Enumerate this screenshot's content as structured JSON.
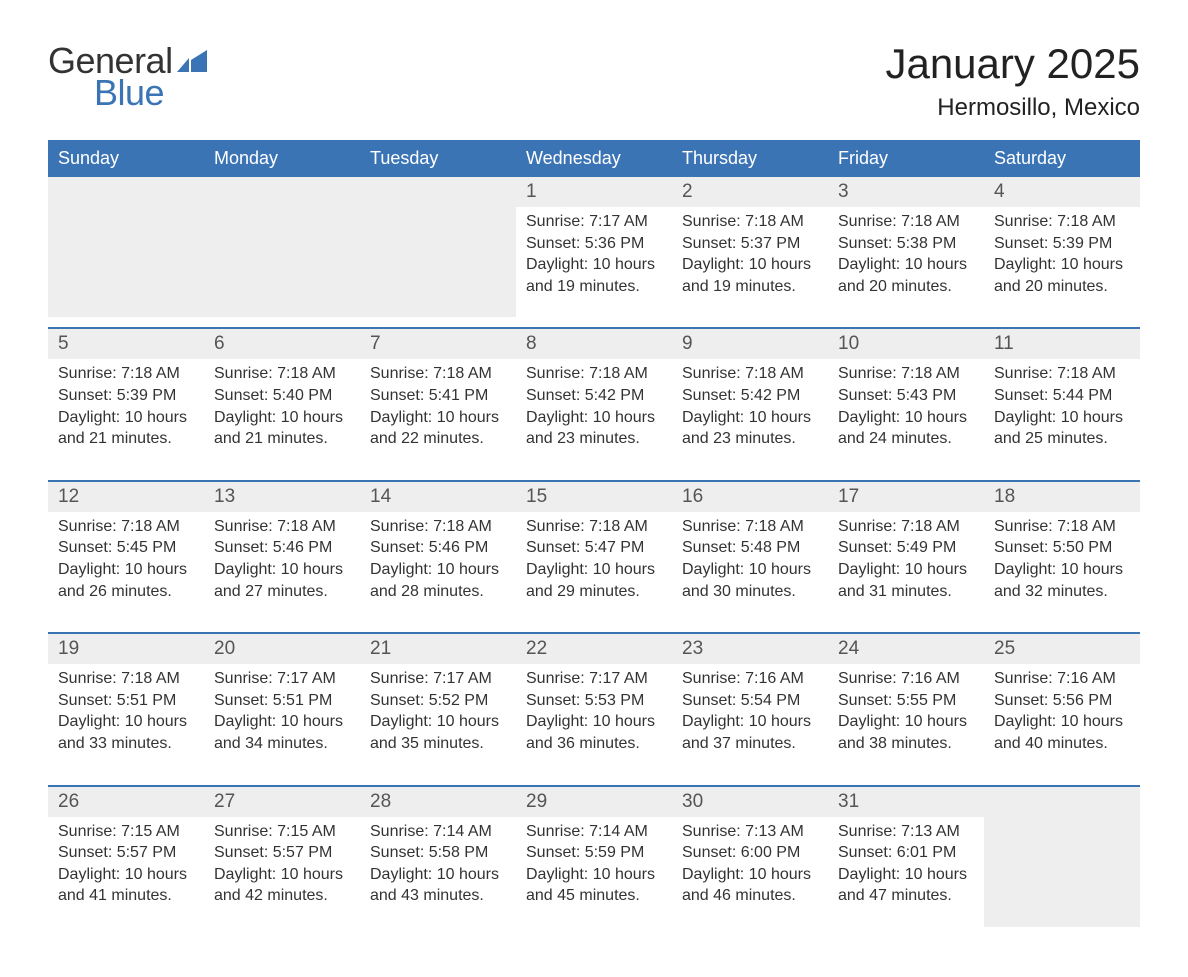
{
  "logo": {
    "word1": "General",
    "word2": "Blue",
    "mark_color": "#3b74b5"
  },
  "title": "January 2025",
  "location": "Hermosillo, Mexico",
  "colors": {
    "header_bg": "#3b74b5",
    "header_fg": "#ffffff",
    "daynum_bg": "#eeeeee",
    "row_border": "#3b74b5",
    "text": "#333333"
  },
  "weekday_labels": [
    "Sunday",
    "Monday",
    "Tuesday",
    "Wednesday",
    "Thursday",
    "Friday",
    "Saturday"
  ],
  "labels": {
    "sunrise": "Sunrise:",
    "sunset": "Sunset:",
    "daylight": "Daylight:"
  },
  "weeks": [
    [
      null,
      null,
      null,
      {
        "n": "1",
        "sunrise": "7:17 AM",
        "sunset": "5:36 PM",
        "daylight": "10 hours and 19 minutes."
      },
      {
        "n": "2",
        "sunrise": "7:18 AM",
        "sunset": "5:37 PM",
        "daylight": "10 hours and 19 minutes."
      },
      {
        "n": "3",
        "sunrise": "7:18 AM",
        "sunset": "5:38 PM",
        "daylight": "10 hours and 20 minutes."
      },
      {
        "n": "4",
        "sunrise": "7:18 AM",
        "sunset": "5:39 PM",
        "daylight": "10 hours and 20 minutes."
      }
    ],
    [
      {
        "n": "5",
        "sunrise": "7:18 AM",
        "sunset": "5:39 PM",
        "daylight": "10 hours and 21 minutes."
      },
      {
        "n": "6",
        "sunrise": "7:18 AM",
        "sunset": "5:40 PM",
        "daylight": "10 hours and 21 minutes."
      },
      {
        "n": "7",
        "sunrise": "7:18 AM",
        "sunset": "5:41 PM",
        "daylight": "10 hours and 22 minutes."
      },
      {
        "n": "8",
        "sunrise": "7:18 AM",
        "sunset": "5:42 PM",
        "daylight": "10 hours and 23 minutes."
      },
      {
        "n": "9",
        "sunrise": "7:18 AM",
        "sunset": "5:42 PM",
        "daylight": "10 hours and 23 minutes."
      },
      {
        "n": "10",
        "sunrise": "7:18 AM",
        "sunset": "5:43 PM",
        "daylight": "10 hours and 24 minutes."
      },
      {
        "n": "11",
        "sunrise": "7:18 AM",
        "sunset": "5:44 PM",
        "daylight": "10 hours and 25 minutes."
      }
    ],
    [
      {
        "n": "12",
        "sunrise": "7:18 AM",
        "sunset": "5:45 PM",
        "daylight": "10 hours and 26 minutes."
      },
      {
        "n": "13",
        "sunrise": "7:18 AM",
        "sunset": "5:46 PM",
        "daylight": "10 hours and 27 minutes."
      },
      {
        "n": "14",
        "sunrise": "7:18 AM",
        "sunset": "5:46 PM",
        "daylight": "10 hours and 28 minutes."
      },
      {
        "n": "15",
        "sunrise": "7:18 AM",
        "sunset": "5:47 PM",
        "daylight": "10 hours and 29 minutes."
      },
      {
        "n": "16",
        "sunrise": "7:18 AM",
        "sunset": "5:48 PM",
        "daylight": "10 hours and 30 minutes."
      },
      {
        "n": "17",
        "sunrise": "7:18 AM",
        "sunset": "5:49 PM",
        "daylight": "10 hours and 31 minutes."
      },
      {
        "n": "18",
        "sunrise": "7:18 AM",
        "sunset": "5:50 PM",
        "daylight": "10 hours and 32 minutes."
      }
    ],
    [
      {
        "n": "19",
        "sunrise": "7:18 AM",
        "sunset": "5:51 PM",
        "daylight": "10 hours and 33 minutes."
      },
      {
        "n": "20",
        "sunrise": "7:17 AM",
        "sunset": "5:51 PM",
        "daylight": "10 hours and 34 minutes."
      },
      {
        "n": "21",
        "sunrise": "7:17 AM",
        "sunset": "5:52 PM",
        "daylight": "10 hours and 35 minutes."
      },
      {
        "n": "22",
        "sunrise": "7:17 AM",
        "sunset": "5:53 PM",
        "daylight": "10 hours and 36 minutes."
      },
      {
        "n": "23",
        "sunrise": "7:16 AM",
        "sunset": "5:54 PM",
        "daylight": "10 hours and 37 minutes."
      },
      {
        "n": "24",
        "sunrise": "7:16 AM",
        "sunset": "5:55 PM",
        "daylight": "10 hours and 38 minutes."
      },
      {
        "n": "25",
        "sunrise": "7:16 AM",
        "sunset": "5:56 PM",
        "daylight": "10 hours and 40 minutes."
      }
    ],
    [
      {
        "n": "26",
        "sunrise": "7:15 AM",
        "sunset": "5:57 PM",
        "daylight": "10 hours and 41 minutes."
      },
      {
        "n": "27",
        "sunrise": "7:15 AM",
        "sunset": "5:57 PM",
        "daylight": "10 hours and 42 minutes."
      },
      {
        "n": "28",
        "sunrise": "7:14 AM",
        "sunset": "5:58 PM",
        "daylight": "10 hours and 43 minutes."
      },
      {
        "n": "29",
        "sunrise": "7:14 AM",
        "sunset": "5:59 PM",
        "daylight": "10 hours and 45 minutes."
      },
      {
        "n": "30",
        "sunrise": "7:13 AM",
        "sunset": "6:00 PM",
        "daylight": "10 hours and 46 minutes."
      },
      {
        "n": "31",
        "sunrise": "7:13 AM",
        "sunset": "6:01 PM",
        "daylight": "10 hours and 47 minutes."
      },
      null
    ]
  ]
}
